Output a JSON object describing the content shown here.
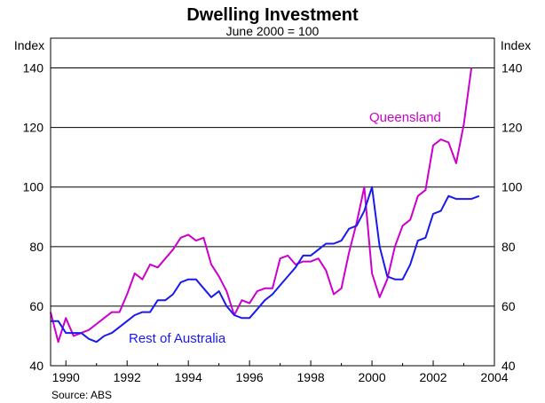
{
  "chart_data": {
    "type": "line",
    "title": "Dwelling Investment",
    "subtitle": "June 2000 = 100",
    "ylabel_left": "Index",
    "ylabel_right": "Index",
    "source": "Source: ABS",
    "ylim": [
      40,
      150
    ],
    "xlim": [
      1989.5,
      2004
    ],
    "yticks": [
      40,
      60,
      80,
      100,
      120,
      140
    ],
    "xticks": [
      "1990",
      "1992",
      "1994",
      "1996",
      "1998",
      "2000",
      "2002",
      "2004"
    ],
    "grid": true,
    "series": [
      {
        "name": "Queensland",
        "color": "#cc00cc",
        "x": [
          1989.5,
          1989.75,
          1990,
          1990.25,
          1990.5,
          1990.75,
          1991,
          1991.25,
          1991.5,
          1991.75,
          1992,
          1992.25,
          1992.5,
          1992.75,
          1993,
          1993.25,
          1993.5,
          1993.75,
          1994,
          1994.25,
          1994.5,
          1994.75,
          1995,
          1995.25,
          1995.5,
          1995.75,
          1996,
          1996.25,
          1996.5,
          1996.75,
          1997,
          1997.25,
          1997.5,
          1997.75,
          1998,
          1998.25,
          1998.5,
          1998.75,
          1999,
          1999.25,
          1999.5,
          1999.75,
          2000,
          2000.25,
          2000.5,
          2000.75,
          2001,
          2001.25,
          2001.5,
          2001.75,
          2002,
          2002.25,
          2002.5,
          2002.75,
          2003,
          2003.25,
          2003.5
        ],
        "values": [
          58,
          48,
          56,
          50,
          51,
          52,
          54,
          56,
          58,
          58,
          64,
          71,
          69,
          74,
          73,
          76,
          79,
          83,
          84,
          82,
          83,
          74,
          70,
          65,
          57,
          62,
          61,
          65,
          66,
          66,
          76,
          77,
          74,
          75,
          75,
          76,
          72,
          64,
          66,
          78,
          88,
          100,
          71,
          63,
          69,
          80,
          87,
          89,
          97,
          99,
          114,
          116,
          115,
          108,
          121,
          140,
          null
        ]
      },
      {
        "name": "Rest of Australia",
        "color": "#1a1aee",
        "x": [
          1989.5,
          1989.75,
          1990,
          1990.25,
          1990.5,
          1990.75,
          1991,
          1991.25,
          1991.5,
          1991.75,
          1992,
          1992.25,
          1992.5,
          1992.75,
          1993,
          1993.25,
          1993.5,
          1993.75,
          1994,
          1994.25,
          1994.5,
          1994.75,
          1995,
          1995.25,
          1995.5,
          1995.75,
          1996,
          1996.25,
          1996.5,
          1996.75,
          1997,
          1997.25,
          1997.5,
          1997.75,
          1998,
          1998.25,
          1998.5,
          1998.75,
          1999,
          1999.25,
          1999.5,
          1999.75,
          2000,
          2000.25,
          2000.5,
          2000.75,
          2001,
          2001.25,
          2001.5,
          2001.75,
          2002,
          2002.25,
          2002.5,
          2002.75,
          2003,
          2003.25,
          2003.5
        ],
        "values": [
          55,
          55,
          51,
          51,
          51,
          49,
          48,
          50,
          51,
          53,
          55,
          57,
          58,
          58,
          62,
          62,
          64,
          68,
          69,
          69,
          66,
          63,
          65,
          60,
          57,
          56,
          56,
          59,
          62,
          64,
          67,
          70,
          73,
          77,
          77,
          79,
          81,
          81,
          82,
          86,
          87,
          92,
          100,
          80,
          70,
          69,
          69,
          74,
          82,
          83,
          91,
          92,
          97,
          96,
          96,
          96,
          97
        ]
      }
    ],
    "annotations": [
      {
        "text": "Queensland",
        "series": 0
      },
      {
        "text": "Rest of Australia",
        "series": 1
      }
    ]
  }
}
